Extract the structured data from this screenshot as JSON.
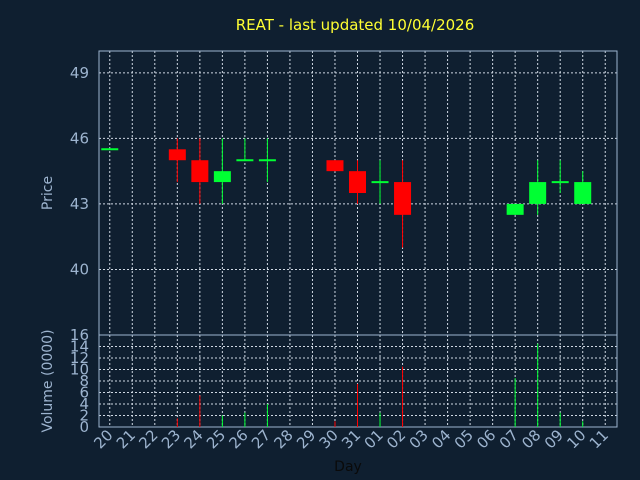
{
  "chart_data": {
    "type": "candlestick",
    "title": "REAT - last updated 10/04/2026",
    "xlabel": "Day",
    "ylabel_price": "Price",
    "ylabel_volume": "Volume (0000)",
    "x_ticks": [
      "20",
      "21",
      "22",
      "23",
      "24",
      "25",
      "26",
      "27",
      "28",
      "29",
      "30",
      "31",
      "01",
      "02",
      "03",
      "04",
      "05",
      "06",
      "07",
      "08",
      "09",
      "10",
      "11"
    ],
    "price_ylim": [
      37,
      50
    ],
    "price_ticks": [
      40,
      43,
      46,
      49
    ],
    "volume_ylim": [
      0,
      16
    ],
    "volume_ticks": [
      0,
      2,
      4,
      6,
      8,
      10,
      12,
      14,
      16
    ],
    "grid": true,
    "colors": {
      "up": "#00ff33",
      "down": "#ff0000",
      "background": "#0f1f30",
      "title": "#ffff33",
      "axis": "#9db4cf"
    },
    "candles": [
      {
        "day": "20",
        "open": 45.5,
        "high": 45.5,
        "low": 45.5,
        "close": 45.5,
        "volume": 0
      },
      {
        "day": "23",
        "open": 45.5,
        "high": 46.0,
        "low": 44.0,
        "close": 45.0,
        "volume": 1.5
      },
      {
        "day": "24",
        "open": 45.0,
        "high": 46.0,
        "low": 43.0,
        "close": 44.0,
        "volume": 5.5
      },
      {
        "day": "25",
        "open": 44.0,
        "high": 46.0,
        "low": 43.0,
        "close": 44.5,
        "volume": 2.0
      },
      {
        "day": "26",
        "open": 45.0,
        "high": 46.0,
        "low": 45.0,
        "close": 45.0,
        "volume": 2.5
      },
      {
        "day": "27",
        "open": 45.0,
        "high": 46.0,
        "low": 44.0,
        "close": 45.0,
        "volume": 4.0
      },
      {
        "day": "30",
        "open": 45.0,
        "high": 45.0,
        "low": 44.5,
        "close": 44.5,
        "volume": 1.0
      },
      {
        "day": "31",
        "open": 44.5,
        "high": 45.0,
        "low": 43.0,
        "close": 43.5,
        "volume": 7.5
      },
      {
        "day": "01",
        "open": 44.0,
        "high": 45.0,
        "low": 43.0,
        "close": 44.0,
        "volume": 2.5
      },
      {
        "day": "02",
        "open": 44.0,
        "high": 45.0,
        "low": 41.0,
        "close": 42.5,
        "volume": 10.5
      },
      {
        "day": "07",
        "open": 42.5,
        "high": 43.0,
        "low": 42.5,
        "close": 43.0,
        "volume": 8.5
      },
      {
        "day": "08",
        "open": 43.0,
        "high": 45.0,
        "low": 42.5,
        "close": 44.0,
        "volume": 14.5
      },
      {
        "day": "09",
        "open": 44.0,
        "high": 45.0,
        "low": 43.5,
        "close": 44.0,
        "volume": 2.5
      },
      {
        "day": "10",
        "open": 43.0,
        "high": 44.5,
        "low": 43.0,
        "close": 44.0,
        "volume": 1.0
      }
    ]
  }
}
